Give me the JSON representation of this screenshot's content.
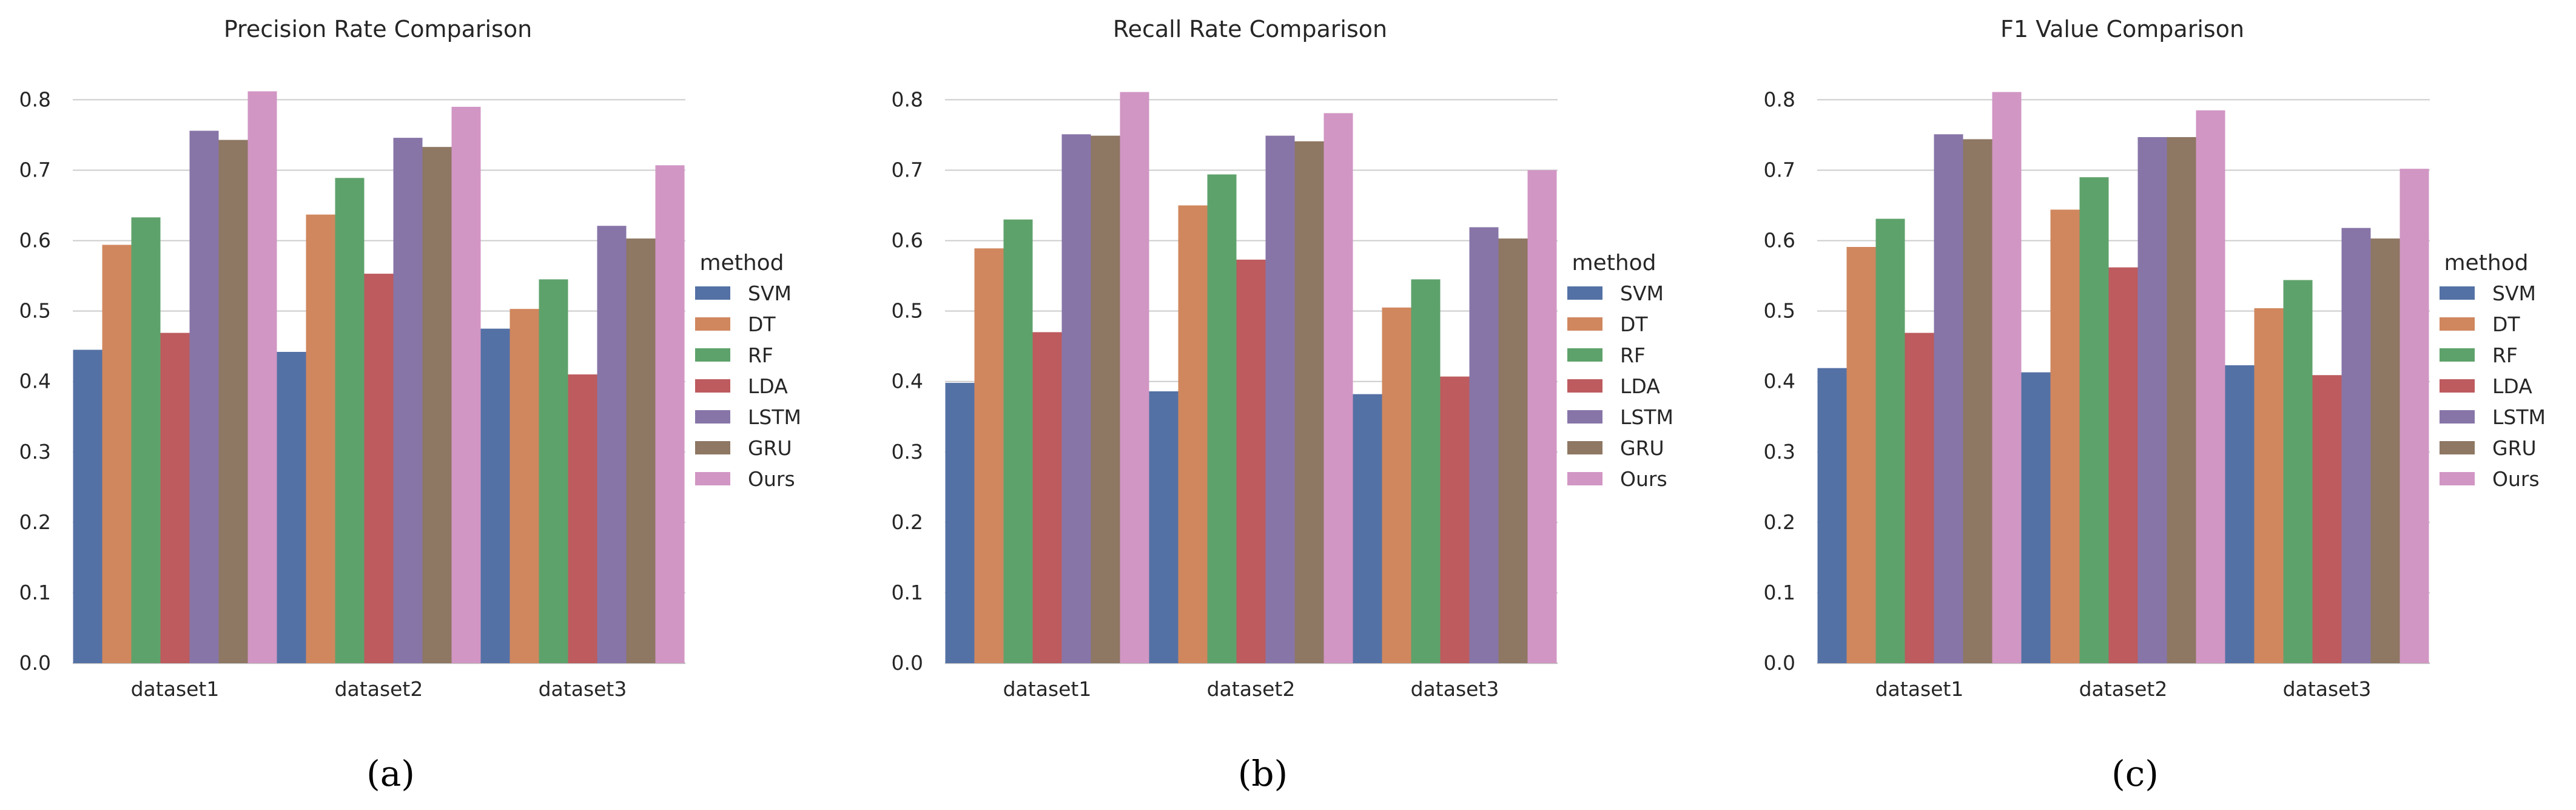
{
  "chart_data": [
    {
      "type": "bar",
      "title": "Precision Rate Comparison",
      "panel_label": "(a)",
      "categories": [
        "dataset1",
        "dataset2",
        "dataset3"
      ],
      "ylim": [
        0,
        0.84
      ],
      "yticks": [
        "0.0",
        "0.1",
        "0.2",
        "0.3",
        "0.4",
        "0.5",
        "0.6",
        "0.7",
        "0.8"
      ],
      "legend_title": "method",
      "legend_position": "right",
      "grid": true,
      "series": [
        {
          "name": "SVM",
          "values": [
            0.445,
            0.442,
            0.475
          ]
        },
        {
          "name": "DT",
          "values": [
            0.594,
            0.637,
            0.503
          ]
        },
        {
          "name": "RF",
          "values": [
            0.633,
            0.689,
            0.545
          ]
        },
        {
          "name": "LDA",
          "values": [
            0.469,
            0.553,
            0.41
          ]
        },
        {
          "name": "LSTM",
          "values": [
            0.756,
            0.746,
            0.621
          ]
        },
        {
          "name": "GRU",
          "values": [
            0.743,
            0.733,
            0.603
          ]
        },
        {
          "name": "Ours",
          "values": [
            0.812,
            0.79,
            0.707
          ]
        }
      ]
    },
    {
      "type": "bar",
      "title": "Recall Rate Comparison",
      "panel_label": "(b)",
      "categories": [
        "dataset1",
        "dataset2",
        "dataset3"
      ],
      "ylim": [
        0,
        0.84
      ],
      "yticks": [
        "0.0",
        "0.1",
        "0.2",
        "0.3",
        "0.4",
        "0.5",
        "0.6",
        "0.7",
        "0.8"
      ],
      "legend_title": "method",
      "legend_position": "right",
      "grid": true,
      "series": [
        {
          "name": "SVM",
          "values": [
            0.398,
            0.386,
            0.382
          ]
        },
        {
          "name": "DT",
          "values": [
            0.589,
            0.65,
            0.505
          ]
        },
        {
          "name": "RF",
          "values": [
            0.63,
            0.694,
            0.545
          ]
        },
        {
          "name": "LDA",
          "values": [
            0.47,
            0.573,
            0.407
          ]
        },
        {
          "name": "LSTM",
          "values": [
            0.751,
            0.749,
            0.619
          ]
        },
        {
          "name": "GRU",
          "values": [
            0.749,
            0.741,
            0.603
          ]
        },
        {
          "name": "Ours",
          "values": [
            0.811,
            0.781,
            0.7
          ]
        }
      ]
    },
    {
      "type": "bar",
      "title": "F1 Value Comparison",
      "panel_label": "(c)",
      "categories": [
        "dataset1",
        "dataset2",
        "dataset3"
      ],
      "ylim": [
        0,
        0.84
      ],
      "yticks": [
        "0.0",
        "0.1",
        "0.2",
        "0.3",
        "0.4",
        "0.5",
        "0.6",
        "0.7",
        "0.8"
      ],
      "legend_title": "method",
      "legend_position": "right",
      "grid": true,
      "series": [
        {
          "name": "SVM",
          "values": [
            0.419,
            0.413,
            0.423
          ]
        },
        {
          "name": "DT",
          "values": [
            0.591,
            0.644,
            0.504
          ]
        },
        {
          "name": "RF",
          "values": [
            0.631,
            0.69,
            0.544
          ]
        },
        {
          "name": "LDA",
          "values": [
            0.469,
            0.562,
            0.409
          ]
        },
        {
          "name": "LSTM",
          "values": [
            0.751,
            0.747,
            0.618
          ]
        },
        {
          "name": "GRU",
          "values": [
            0.744,
            0.747,
            0.603
          ]
        },
        {
          "name": "Ours",
          "values": [
            0.811,
            0.785,
            0.702
          ]
        }
      ]
    }
  ],
  "colors": {
    "SVM": "#5471a5",
    "DT": "#d0875e",
    "RF": "#5ea26b",
    "LDA": "#bd5b5e",
    "LSTM": "#8775a8",
    "GRU": "#8e7763",
    "Ours": "#d196c4"
  }
}
